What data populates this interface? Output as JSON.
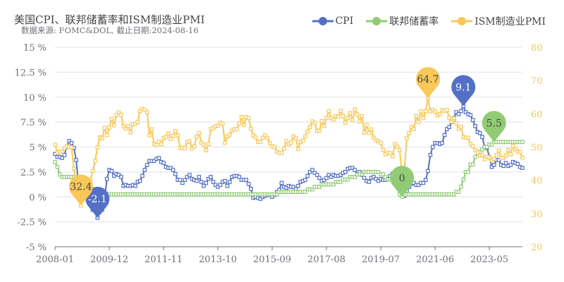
{
  "chart_data": {
    "type": "line",
    "title": "美国CPI、联邦储蓄率和ISM制造业PMI",
    "subtitle": "数据来源: FOMC&DOL, 截止日期:2024-08-16",
    "x_start": "2008-01",
    "x_tick_labels": [
      "2008-01",
      "2009-12",
      "2011-11",
      "2013-10",
      "2015-09",
      "2017-08",
      "2019-07",
      "2021-06",
      "2023-05"
    ],
    "y_left": {
      "min": -5,
      "max": 15,
      "step": 2.5,
      "tick_labels": [
        "-5 %",
        "-2.5 %",
        "0 %",
        "2.5 %",
        "5 %",
        "7.5 %",
        "10 %",
        "12.5 %",
        "15 %"
      ]
    },
    "y_right": {
      "min": 20,
      "max": 80,
      "step": 10,
      "tick_labels": [
        "20",
        "30",
        "40",
        "50",
        "60",
        "70",
        "80"
      ]
    },
    "grid": true,
    "legend_position": "top-right",
    "series": [
      {
        "name": "CPI",
        "axis": "left",
        "color": "#5470c6",
        "values": [
          4.3,
          4.0,
          4.0,
          3.9,
          4.2,
          5.0,
          5.6,
          5.4,
          4.9,
          3.7,
          1.1,
          0.1,
          0.0,
          0.2,
          -0.4,
          -0.7,
          -1.3,
          -1.4,
          -2.1,
          -1.5,
          -1.3,
          -0.2,
          1.8,
          2.7,
          2.6,
          2.1,
          2.3,
          2.2,
          2.0,
          1.1,
          1.2,
          1.1,
          1.1,
          1.2,
          1.1,
          1.5,
          1.6,
          2.1,
          2.7,
          3.2,
          3.6,
          3.6,
          3.6,
          3.8,
          3.9,
          3.5,
          3.4,
          3.0,
          2.9,
          2.9,
          2.7,
          2.3,
          1.7,
          1.7,
          1.4,
          1.7,
          2.0,
          2.2,
          1.8,
          1.7,
          1.6,
          2.0,
          1.5,
          1.1,
          1.4,
          1.8,
          2.0,
          1.5,
          1.2,
          1.0,
          1.2,
          1.5,
          1.6,
          1.1,
          1.5,
          2.0,
          2.1,
          2.1,
          2.0,
          1.7,
          1.7,
          1.7,
          1.3,
          0.8,
          -0.1,
          0.0,
          -0.1,
          -0.2,
          0.0,
          0.1,
          0.2,
          0.2,
          0.0,
          0.2,
          0.5,
          0.7,
          1.4,
          1.0,
          0.9,
          1.1,
          1.0,
          1.0,
          0.8,
          1.1,
          1.5,
          1.6,
          1.7,
          2.1,
          2.5,
          2.7,
          2.4,
          2.2,
          1.9,
          1.6,
          1.7,
          1.9,
          2.2,
          2.0,
          2.2,
          2.1,
          2.1,
          2.2,
          2.4,
          2.5,
          2.8,
          2.9,
          2.9,
          2.7,
          2.3,
          2.5,
          2.2,
          1.9,
          1.6,
          1.5,
          1.9,
          2.0,
          1.8,
          1.6,
          1.8,
          1.7,
          1.7,
          1.8,
          2.1,
          2.3,
          2.5,
          2.3,
          1.5,
          0.3,
          0.1,
          0.6,
          1.0,
          1.3,
          1.4,
          1.2,
          1.2,
          1.4,
          1.4,
          1.7,
          2.6,
          4.2,
          5.0,
          5.4,
          5.4,
          5.3,
          5.4,
          6.2,
          6.8,
          7.0,
          7.5,
          7.9,
          8.5,
          8.3,
          8.6,
          9.1,
          8.5,
          8.3,
          8.2,
          7.7,
          7.1,
          6.5,
          6.4,
          6.0,
          5.0,
          4.9,
          4.0,
          3.0,
          3.2,
          3.7,
          3.7,
          3.2,
          3.1,
          3.4,
          3.1,
          3.2,
          3.5,
          3.4,
          3.3,
          3.0,
          2.9
        ]
      },
      {
        "name": "联邦储蓄率",
        "axis": "left",
        "color": "#91cc75",
        "values": [
          3.5,
          3.0,
          2.25,
          2.0,
          2.0,
          2.0,
          2.0,
          2.0,
          2.0,
          2.0,
          2.0,
          0.25,
          0.25,
          0.25,
          0.25,
          0.25,
          0.25,
          0.25,
          0.25,
          0.25,
          0.25,
          0.25,
          0.25,
          0.25,
          0.25,
          0.25,
          0.25,
          0.25,
          0.25,
          0.25,
          0.25,
          0.25,
          0.25,
          0.25,
          0.25,
          0.25,
          0.25,
          0.25,
          0.25,
          0.25,
          0.25,
          0.25,
          0.25,
          0.25,
          0.25,
          0.25,
          0.25,
          0.25,
          0.25,
          0.25,
          0.25,
          0.25,
          0.25,
          0.25,
          0.25,
          0.25,
          0.25,
          0.25,
          0.25,
          0.25,
          0.25,
          0.25,
          0.25,
          0.25,
          0.25,
          0.25,
          0.25,
          0.25,
          0.25,
          0.25,
          0.25,
          0.25,
          0.25,
          0.25,
          0.25,
          0.25,
          0.25,
          0.25,
          0.25,
          0.25,
          0.25,
          0.25,
          0.25,
          0.25,
          0.25,
          0.25,
          0.25,
          0.25,
          0.25,
          0.25,
          0.25,
          0.25,
          0.25,
          0.25,
          0.25,
          0.5,
          0.5,
          0.5,
          0.5,
          0.5,
          0.5,
          0.5,
          0.5,
          0.5,
          0.5,
          0.5,
          0.5,
          0.75,
          0.75,
          0.75,
          1.0,
          1.0,
          1.0,
          1.25,
          1.25,
          1.25,
          1.25,
          1.25,
          1.25,
          1.5,
          1.5,
          1.5,
          1.75,
          1.75,
          1.75,
          2.0,
          2.0,
          2.0,
          2.25,
          2.25,
          2.25,
          2.5,
          2.5,
          2.5,
          2.5,
          2.5,
          2.5,
          2.5,
          2.25,
          2.25,
          2.0,
          1.75,
          1.75,
          1.75,
          1.75,
          1.75,
          0.25,
          0,
          0.25,
          0.25,
          0.25,
          0.25,
          0.25,
          0.25,
          0.25,
          0.25,
          0.25,
          0.25,
          0.25,
          0.25,
          0.25,
          0.25,
          0.25,
          0.25,
          0.25,
          0.25,
          0.25,
          0.25,
          0.25,
          0.25,
          0.5,
          0.5,
          1.0,
          1.75,
          2.5,
          2.5,
          3.25,
          3.25,
          4.0,
          4.5,
          4.5,
          4.75,
          5.0,
          5.0,
          5.25,
          5.25,
          5.5,
          5.5,
          5.5,
          5.5,
          5.5,
          5.5,
          5.5,
          5.5,
          5.5,
          5.5,
          5.5,
          5.5,
          5.5
        ]
      },
      {
        "name": "ISM制造业PMI",
        "axis": "right",
        "color": "#fac858",
        "values": [
          50.7,
          48.3,
          48.6,
          48.6,
          49.6,
          50.2,
          50.0,
          49.9,
          43.5,
          38.9,
          36.2,
          32.4,
          35.6,
          35.8,
          36.3,
          40.1,
          42.8,
          45.8,
          49.9,
          52.9,
          52.6,
          55.7,
          53.6,
          55.9,
          58.4,
          56.5,
          59.6,
          60.4,
          59.7,
          56.2,
          55.5,
          56.3,
          54.4,
          56.9,
          57.0,
          57.5,
          60.8,
          61.4,
          61.2,
          60.4,
          53.5,
          55.3,
          50.9,
          50.6,
          51.6,
          50.8,
          52.7,
          53.1,
          54.1,
          52.4,
          53.4,
          54.8,
          53.5,
          49.7,
          49.8,
          49.6,
          51.5,
          51.7,
          49.5,
          50.2,
          53.1,
          54.2,
          51.3,
          50.7,
          49.0,
          50.9,
          55.4,
          55.7,
          56.2,
          56.4,
          57.3,
          57.0,
          51.3,
          53.2,
          53.7,
          54.9,
          55.4,
          55.3,
          57.1,
          59.0,
          56.6,
          59.0,
          58.7,
          55.5,
          53.5,
          52.9,
          51.5,
          51.5,
          52.8,
          53.5,
          52.7,
          51.1,
          50.2,
          50.1,
          48.6,
          48.2,
          48.2,
          49.5,
          51.8,
          50.8,
          51.3,
          53.2,
          52.6,
          49.4,
          51.5,
          51.9,
          53.2,
          54.7,
          56.0,
          57.7,
          57.2,
          54.8,
          54.9,
          57.8,
          56.3,
          58.8,
          60.8,
          58.7,
          58.2,
          59.3,
          59.1,
          60.8,
          59.3,
          57.3,
          58.7,
          60.2,
          58.1,
          61.3,
          59.8,
          57.7,
          59.3,
          54.3,
          56.6,
          54.2,
          55.3,
          52.8,
          52.1,
          51.7,
          51.2,
          49.1,
          47.8,
          48.3,
          48.1,
          47.2,
          50.9,
          50.1,
          49.1,
          41.5,
          43.1,
          52.6,
          54.2,
          56.0,
          55.4,
          59.3,
          57.5,
          60.7,
          58.7,
          60.8,
          64.7,
          60.7,
          61.2,
          60.6,
          59.5,
          59.9,
          61.1,
          60.8,
          61.1,
          58.8,
          57.6,
          58.6,
          57.1,
          55.4,
          56.1,
          53.0,
          52.8,
          52.8,
          50.9,
          50.2,
          49.0,
          48.4,
          47.4,
          47.7,
          46.3,
          47.1,
          46.9,
          46.0,
          46.4,
          47.6,
          49.0,
          46.7,
          46.7,
          47.4,
          49.1,
          47.8,
          50.3,
          49.2,
          48.7,
          48.5,
          46.8
        ]
      }
    ],
    "mark_points": [
      {
        "series": 0,
        "type": "max",
        "label": "9.1",
        "text_color": "#ffffff"
      },
      {
        "series": 0,
        "type": "min",
        "label": "-2.1",
        "text_color": "#ffffff"
      },
      {
        "series": 1,
        "type": "max",
        "label": "5.5",
        "text_color": "#464646"
      },
      {
        "series": 1,
        "type": "min",
        "label": "0",
        "text_color": "#464646"
      },
      {
        "series": 2,
        "type": "max",
        "label": "64.7",
        "text_color": "#464646"
      },
      {
        "series": 2,
        "type": "min",
        "label": "32.4",
        "text_color": "#464646"
      }
    ]
  }
}
